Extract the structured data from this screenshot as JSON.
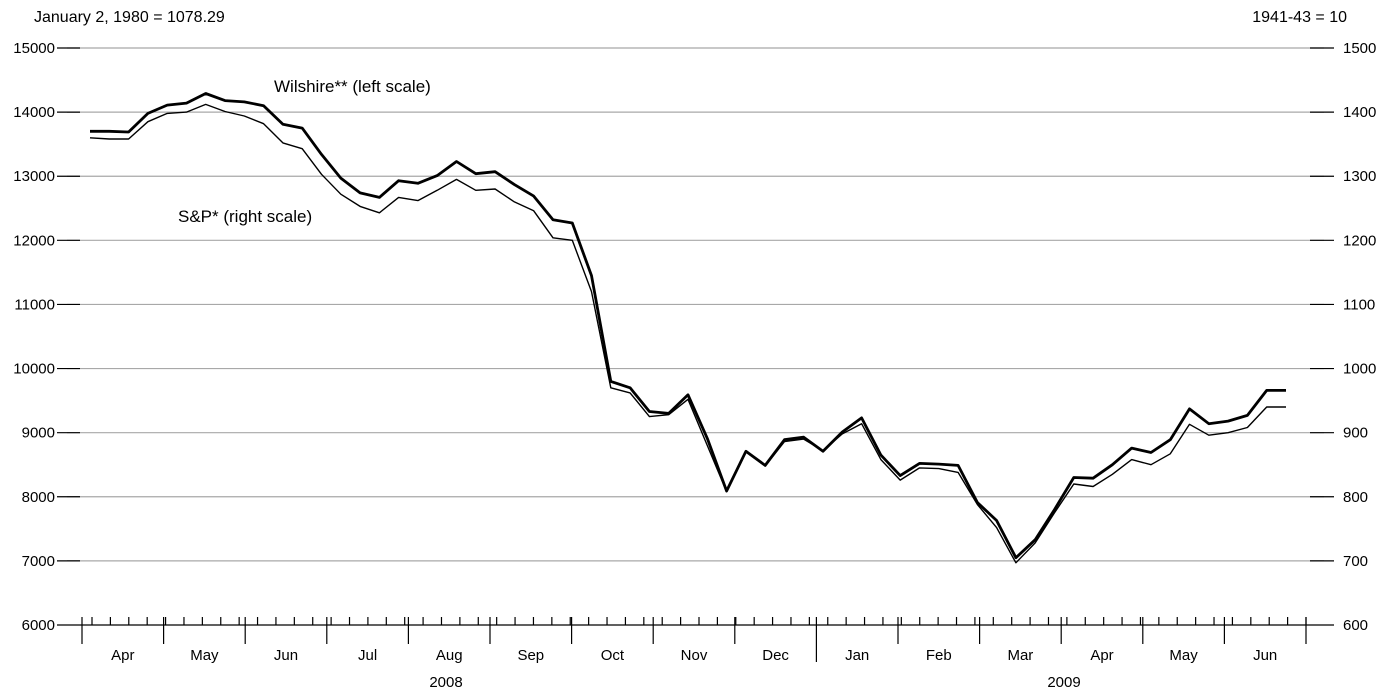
{
  "chart_data": {
    "type": "line",
    "left_axis_note": "January 2, 1980 = 1078.29",
    "right_axis_note": "1941-43 = 10",
    "left_axis": {
      "ylim": [
        6000,
        15000
      ],
      "ticks": [
        6000,
        7000,
        8000,
        9000,
        10000,
        11000,
        12000,
        13000,
        14000,
        15000
      ]
    },
    "right_axis": {
      "ylim": [
        600,
        1500
      ],
      "ticks": [
        600,
        700,
        800,
        900,
        1000,
        1100,
        1200,
        1300,
        1400,
        1500
      ]
    },
    "grid": true,
    "x_week_count": 63,
    "months": [
      "Apr",
      "May",
      "Jun",
      "Jul",
      "Aug",
      "Sep",
      "Oct",
      "Nov",
      "Dec",
      "Jan",
      "Feb",
      "Mar",
      "Apr",
      "May",
      "Jun"
    ],
    "years": [
      "2008",
      "2009"
    ],
    "series": [
      {
        "name": "Wilshire** (left scale)",
        "axis": "left",
        "values": [
          13700,
          13700,
          13690,
          13980,
          14110,
          14140,
          14290,
          14180,
          14160,
          14100,
          13810,
          13750,
          13340,
          12970,
          12740,
          12670,
          12930,
          12890,
          13010,
          13230,
          13040,
          13070,
          12870,
          12690,
          12320,
          12270,
          11450,
          9800,
          9700,
          9330,
          9300,
          9590,
          8910,
          8090,
          8710,
          8490,
          8890,
          8930,
          8710,
          9010,
          9230,
          8650,
          8330,
          8520,
          8510,
          8490,
          7910,
          7630,
          7050,
          7330,
          7800,
          8300,
          8290,
          8500,
          8760,
          8690,
          8890,
          9370,
          9140,
          9180,
          9270,
          9660,
          9660
        ]
      },
      {
        "name": "S&P* (right scale)",
        "axis": "right",
        "values": [
          1360,
          1358,
          1358,
          1385,
          1398,
          1400,
          1412,
          1401,
          1394,
          1382,
          1352,
          1343,
          1303,
          1272,
          1253,
          1243,
          1267,
          1262,
          1278,
          1295,
          1278,
          1280,
          1260,
          1246,
          1204,
          1200,
          1120,
          970,
          962,
          925,
          928,
          952,
          880,
          808,
          870,
          848,
          886,
          890,
          872,
          898,
          914,
          858,
          826,
          845,
          844,
          838,
          788,
          752,
          697,
          728,
          775,
          820,
          816,
          835,
          858,
          850,
          867,
          913,
          896,
          900,
          908,
          940,
          940
        ]
      }
    ]
  }
}
